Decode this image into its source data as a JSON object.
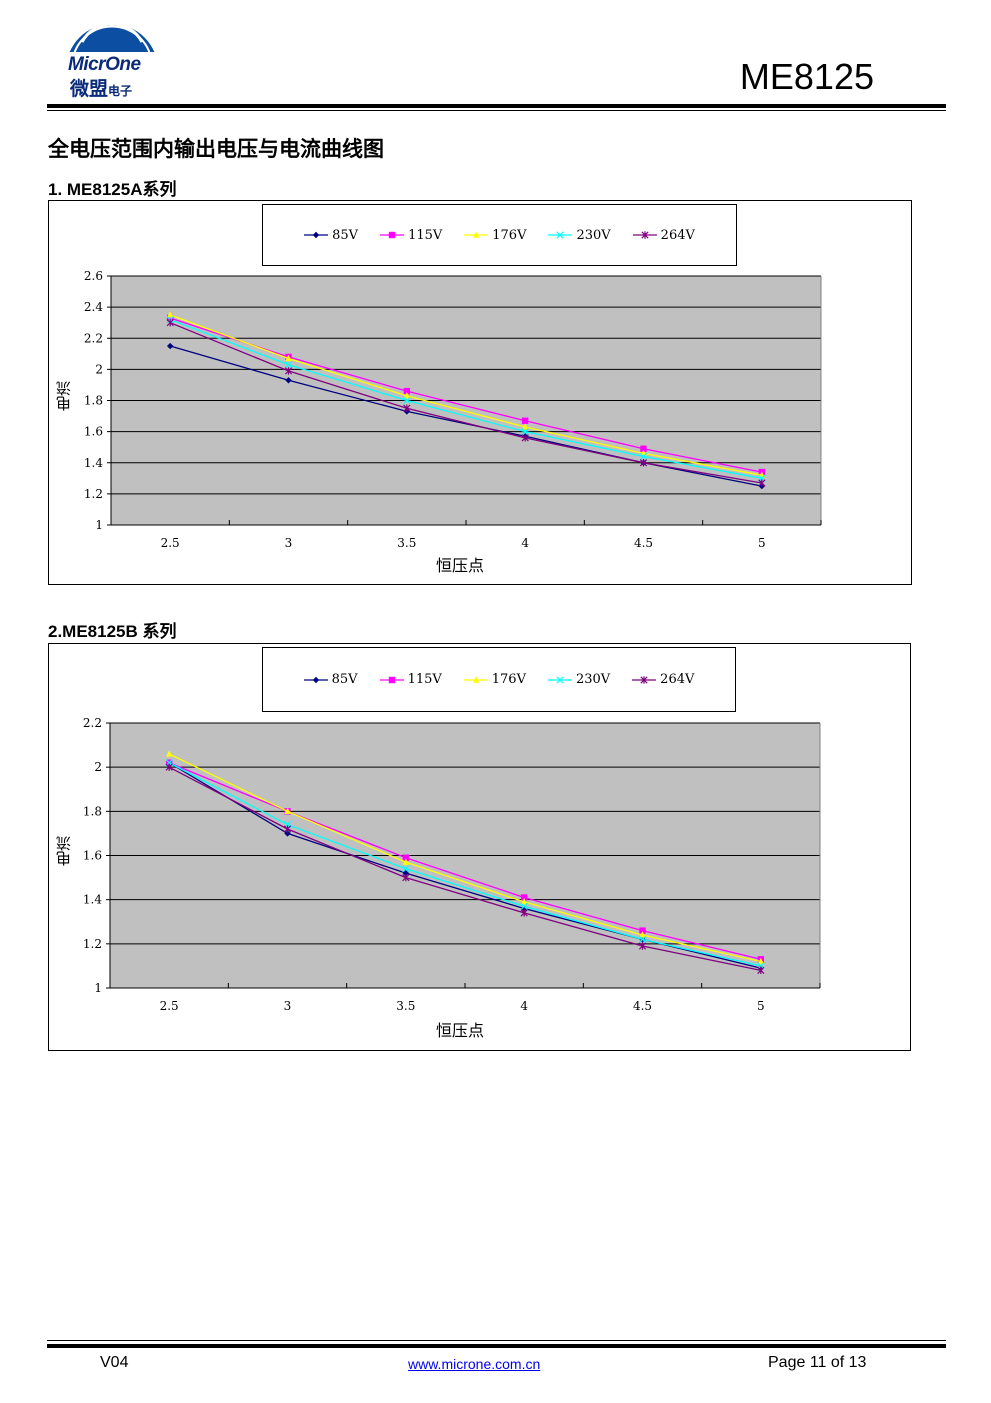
{
  "header": {
    "logo_text": "MicrOne",
    "logo_cn": "微盟",
    "logo_cn_small": "电子",
    "model": "ME8125"
  },
  "section_title": "全电压范围内输出电压与电流曲线图",
  "charts_meta": [
    {
      "title": "1. ME8125A系列"
    },
    {
      "title": "2.ME8125B 系列"
    }
  ],
  "chart_data": [
    {
      "type": "line",
      "title": "",
      "xlabel": "恒压点",
      "ylabel": "电流",
      "x": [
        2.5,
        3,
        3.5,
        4,
        4.5,
        5
      ],
      "x_tick_labels": [
        "2.5",
        "3",
        "3.5",
        "4",
        "4.5",
        "5"
      ],
      "y_tick_labels": [
        "1",
        "1.2",
        "1.4",
        "1.6",
        "1.8",
        "2",
        "2.2",
        "2.4",
        "2.6"
      ],
      "ylim": [
        1,
        2.6
      ],
      "grid": true,
      "legend": "top",
      "plot_background": "#c0c0c0",
      "series": [
        {
          "name": "85V",
          "color": "#000080",
          "marker": "diamond",
          "values": [
            2.15,
            1.93,
            1.73,
            1.57,
            1.4,
            1.25
          ]
        },
        {
          "name": "115V",
          "color": "#ff00ff",
          "marker": "square",
          "values": [
            2.33,
            2.08,
            1.86,
            1.67,
            1.49,
            1.34
          ]
        },
        {
          "name": "176V",
          "color": "#ffff00",
          "marker": "triangle",
          "values": [
            2.35,
            2.07,
            1.83,
            1.63,
            1.46,
            1.32
          ]
        },
        {
          "name": "230V",
          "color": "#00ffff",
          "marker": "x",
          "values": [
            2.32,
            2.03,
            1.8,
            1.6,
            1.44,
            1.3
          ]
        },
        {
          "name": "264V",
          "color": "#800080",
          "marker": "star",
          "values": [
            2.3,
            1.99,
            1.75,
            1.56,
            1.4,
            1.27
          ]
        }
      ]
    },
    {
      "type": "line",
      "title": "",
      "xlabel": "恒压点",
      "ylabel": "电流",
      "x": [
        2.5,
        3,
        3.5,
        4,
        4.5,
        5
      ],
      "x_tick_labels": [
        "2.5",
        "3",
        "3.5",
        "4",
        "4.5",
        "5"
      ],
      "y_tick_labels": [
        "1",
        "1.2",
        "1.4",
        "1.6",
        "1.8",
        "2",
        "2.2"
      ],
      "ylim": [
        1,
        2.2
      ],
      "grid": true,
      "legend": "top",
      "plot_background": "#c0c0c0",
      "series": [
        {
          "name": "85V",
          "color": "#000080",
          "marker": "diamond",
          "values": [
            2.02,
            1.7,
            1.52,
            1.36,
            1.22,
            1.09
          ]
        },
        {
          "name": "115V",
          "color": "#ff00ff",
          "marker": "square",
          "values": [
            2.02,
            1.8,
            1.59,
            1.41,
            1.26,
            1.13
          ]
        },
        {
          "name": "176V",
          "color": "#ffff00",
          "marker": "triangle",
          "values": [
            2.06,
            1.8,
            1.57,
            1.39,
            1.24,
            1.12
          ]
        },
        {
          "name": "230V",
          "color": "#00ffff",
          "marker": "x",
          "values": [
            2.02,
            1.74,
            1.54,
            1.37,
            1.22,
            1.1
          ]
        },
        {
          "name": "264V",
          "color": "#800080",
          "marker": "star",
          "values": [
            2.0,
            1.72,
            1.5,
            1.34,
            1.19,
            1.08
          ]
        }
      ]
    }
  ],
  "footer": {
    "version": "V04",
    "website": "www.microne.com.cn",
    "page": "Page 11 of 13"
  }
}
